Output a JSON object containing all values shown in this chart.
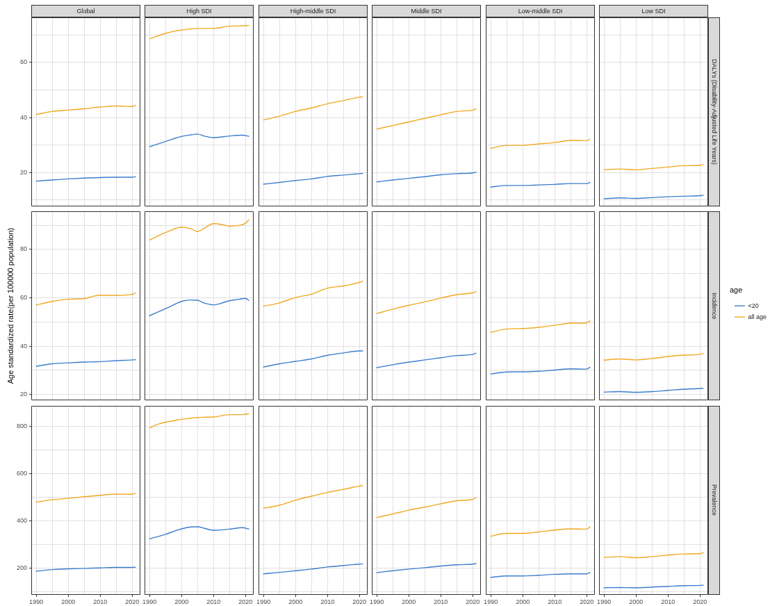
{
  "chart_data": [
    {
      "type": "line",
      "title": "Global",
      "tick_labels": "y",
      "x": [
        1990,
        1995,
        2000,
        2005,
        2010,
        2015,
        2020,
        2021
      ],
      "series": [
        {
          "color": "#3a7dce",
          "values": [
            16.9,
            17.3,
            17.7,
            18.0,
            18.2,
            18.3,
            18.3,
            18.5
          ]
        },
        {
          "color": "#f0a820",
          "values": [
            41.1,
            42.2,
            42.7,
            43.2,
            43.8,
            44.2,
            44.0,
            44.5
          ]
        }
      ],
      "xlim": [
        1988.45,
        2022.55
      ],
      "xticks": [
        1990,
        {
          "value": 1995,
          "label": null
        },
        2000,
        {
          "value": 2005,
          "label": null
        },
        2010,
        {
          "value": 2015,
          "label": null
        },
        2020
      ],
      "ylim": [
        7.7,
        76.4
      ],
      "yticks": [
        {
          "value": 10,
          "label": null
        },
        20,
        {
          "value": 30,
          "label": null
        },
        40,
        {
          "value": 50,
          "label": null
        },
        60,
        {
          "value": 70,
          "label": null
        }
      ],
      "grid": true
    },
    {
      "type": "line",
      "title": "High SDI",
      "tick_labels": false,
      "x": [
        1990,
        1995,
        2000,
        2003,
        2005,
        2007,
        2010,
        2015,
        2019,
        2021
      ],
      "series": [
        {
          "color": "#3a7dce",
          "values": [
            29.4,
            31.3,
            33.1,
            33.7,
            34.0,
            33.3,
            32.7,
            33.3,
            33.6,
            33.2
          ]
        },
        {
          "color": "#f0a820",
          "values": [
            68.6,
            70.6,
            71.8,
            72.2,
            72.4,
            72.4,
            72.4,
            73.2,
            73.3,
            73.5
          ]
        }
      ],
      "xlim": [
        1988.45,
        2022.55
      ],
      "xticks": [
        1990,
        {
          "value": 1995,
          "label": null
        },
        2000,
        {
          "value": 2005,
          "label": null
        },
        2010,
        {
          "value": 2015,
          "label": null
        },
        2020
      ],
      "ylim": [
        7.7,
        76.4
      ],
      "yticks": [
        {
          "value": 10,
          "label": null
        },
        20,
        {
          "value": 30,
          "label": null
        },
        40,
        {
          "value": 50,
          "label": null
        },
        60,
        {
          "value": 70,
          "label": null
        }
      ],
      "grid": true
    },
    {
      "type": "line",
      "title": "High-middle SDI",
      "tick_labels": false,
      "x": [
        1990,
        1995,
        2000,
        2005,
        2010,
        2015,
        2020,
        2021
      ],
      "series": [
        {
          "color": "#3a7dce",
          "values": [
            15.8,
            16.4,
            17.1,
            17.7,
            18.6,
            19.1,
            19.6,
            19.7
          ]
        },
        {
          "color": "#f0a820",
          "values": [
            39.1,
            40.5,
            42.2,
            43.5,
            45.0,
            46.2,
            47.4,
            47.5
          ]
        }
      ],
      "xlim": [
        1988.45,
        2022.55
      ],
      "xticks": [
        1990,
        {
          "value": 1995,
          "label": null
        },
        2000,
        {
          "value": 2005,
          "label": null
        },
        2010,
        {
          "value": 2015,
          "label": null
        },
        2020
      ],
      "ylim": [
        7.7,
        76.4
      ],
      "yticks": [
        {
          "value": 10,
          "label": null
        },
        20,
        {
          "value": 30,
          "label": null
        },
        40,
        {
          "value": 50,
          "label": null
        },
        60,
        {
          "value": 70,
          "label": null
        }
      ],
      "grid": true
    },
    {
      "type": "line",
      "title": "Middle SDI",
      "tick_labels": false,
      "x": [
        1990,
        1995,
        2000,
        2005,
        2010,
        2015,
        2020,
        2021
      ],
      "series": [
        {
          "color": "#3a7dce",
          "values": [
            16.6,
            17.3,
            17.9,
            18.5,
            19.2,
            19.6,
            19.9,
            20.1
          ]
        },
        {
          "color": "#f0a820",
          "values": [
            35.8,
            37.1,
            38.4,
            39.7,
            41.0,
            42.2,
            42.7,
            43.1
          ]
        }
      ],
      "xlim": [
        1988.45,
        2022.55
      ],
      "xticks": [
        1990,
        {
          "value": 1995,
          "label": null
        },
        2000,
        {
          "value": 2005,
          "label": null
        },
        2010,
        {
          "value": 2015,
          "label": null
        },
        2020
      ],
      "ylim": [
        7.7,
        76.4
      ],
      "yticks": [
        {
          "value": 10,
          "label": null
        },
        20,
        {
          "value": 30,
          "label": null
        },
        40,
        {
          "value": 50,
          "label": null
        },
        60,
        {
          "value": 70,
          "label": null
        }
      ],
      "grid": true
    },
    {
      "type": "line",
      "title": "Low-middle SDI",
      "tick_labels": false,
      "x": [
        1990,
        1995,
        2000,
        2005,
        2010,
        2015,
        2020,
        2021
      ],
      "series": [
        {
          "color": "#3a7dce",
          "values": [
            14.7,
            15.3,
            15.3,
            15.5,
            15.7,
            16.0,
            16.0,
            16.4
          ]
        },
        {
          "color": "#f0a820",
          "values": [
            28.8,
            29.9,
            29.9,
            30.4,
            30.9,
            31.7,
            31.6,
            32.2
          ]
        }
      ],
      "xlim": [
        1988.45,
        2022.55
      ],
      "xticks": [
        1990,
        {
          "value": 1995,
          "label": null
        },
        2000,
        {
          "value": 2005,
          "label": null
        },
        2010,
        {
          "value": 2015,
          "label": null
        },
        2020
      ],
      "ylim": [
        7.7,
        76.4
      ],
      "yticks": [
        {
          "value": 10,
          "label": null
        },
        20,
        {
          "value": 30,
          "label": null
        },
        40,
        {
          "value": 50,
          "label": null
        },
        60,
        {
          "value": 70,
          "label": null
        }
      ],
      "grid": true
    },
    {
      "type": "line",
      "title": "Low SDI",
      "y2label": "DALYs (Disability-Adjusted Life Years)",
      "tick_labels": false,
      "x": [
        1990,
        1995,
        2000,
        2005,
        2010,
        2015,
        2020,
        2021
      ],
      "series": [
        {
          "color": "#3a7dce",
          "values": [
            10.5,
            10.8,
            10.6,
            10.9,
            11.2,
            11.4,
            11.6,
            11.7
          ]
        },
        {
          "color": "#f0a820",
          "values": [
            21.0,
            21.3,
            21.0,
            21.5,
            22.0,
            22.5,
            22.6,
            23.0
          ]
        }
      ],
      "xlim": [
        1988.45,
        2022.55
      ],
      "xticks": [
        1990,
        {
          "value": 1995,
          "label": null
        },
        2000,
        {
          "value": 2005,
          "label": null
        },
        2010,
        {
          "value": 2015,
          "label": null
        },
        2020
      ],
      "ylim": [
        7.7,
        76.4
      ],
      "yticks": [
        {
          "value": 10,
          "label": null
        },
        20,
        {
          "value": 30,
          "label": null
        },
        40,
        {
          "value": 50,
          "label": null
        },
        60,
        {
          "value": 70,
          "label": null
        }
      ],
      "grid": true
    },
    {
      "type": "line",
      "ylabel": "Age standardized rate(per 100000 population)",
      "tick_labels": "y",
      "x": [
        1990,
        1995,
        2000,
        2005,
        2008,
        2010,
        2015,
        2020,
        2021
      ],
      "series": [
        {
          "color": "#3a7dce",
          "values": [
            31.7,
            32.7,
            33.1,
            33.4,
            33.5,
            33.6,
            34.0,
            34.3,
            34.4
          ]
        },
        {
          "color": "#f0a820",
          "values": [
            57.0,
            58.5,
            59.4,
            59.7,
            60.7,
            61.0,
            61.0,
            61.4,
            62.0
          ]
        }
      ],
      "xlim": [
        1988.45,
        2022.55
      ],
      "xticks": [
        1990,
        {
          "value": 1995,
          "label": null
        },
        2000,
        {
          "value": 2005,
          "label": null
        },
        2010,
        {
          "value": 2015,
          "label": null
        },
        2020
      ],
      "ylim": [
        17.6,
        95.8
      ],
      "yticks": [
        20,
        {
          "value": 30,
          "label": null
        },
        40,
        {
          "value": 50,
          "label": null
        },
        60,
        {
          "value": 70,
          "label": null
        },
        80,
        {
          "value": 90,
          "label": null
        }
      ],
      "grid": true
    },
    {
      "type": "line",
      "tick_labels": false,
      "x": [
        1990,
        1995,
        2000,
        2003,
        2005,
        2007,
        2010,
        2013,
        2015,
        2018,
        2020,
        2021
      ],
      "series": [
        {
          "color": "#3a7dce",
          "values": [
            52.6,
            55.5,
            58.5,
            59.1,
            59.0,
            57.9,
            57.1,
            58.0,
            58.8,
            59.4,
            59.8,
            58.9
          ]
        },
        {
          "color": "#f0a820",
          "values": [
            83.9,
            87.0,
            89.2,
            88.5,
            87.4,
            88.7,
            90.7,
            90.2,
            89.6,
            90.0,
            90.8,
            92.2
          ]
        }
      ],
      "xlim": [
        1988.45,
        2022.55
      ],
      "xticks": [
        1990,
        {
          "value": 1995,
          "label": null
        },
        2000,
        {
          "value": 2005,
          "label": null
        },
        2010,
        {
          "value": 2015,
          "label": null
        },
        2020
      ],
      "ylim": [
        17.6,
        95.8
      ],
      "yticks": [
        20,
        {
          "value": 30,
          "label": null
        },
        40,
        {
          "value": 50,
          "label": null
        },
        60,
        {
          "value": 70,
          "label": null
        },
        80,
        {
          "value": 90,
          "label": null
        }
      ],
      "grid": true
    },
    {
      "type": "line",
      "tick_labels": false,
      "x": [
        1990,
        1995,
        2000,
        2005,
        2010,
        2015,
        2020,
        2021
      ],
      "series": [
        {
          "color": "#3a7dce",
          "values": [
            31.4,
            32.7,
            33.7,
            34.7,
            36.2,
            37.2,
            38.0,
            38.0
          ]
        },
        {
          "color": "#f0a820",
          "values": [
            56.5,
            57.9,
            60.1,
            61.5,
            64.0,
            64.9,
            66.4,
            66.9
          ]
        }
      ],
      "xlim": [
        1988.45,
        2022.55
      ],
      "xticks": [
        1990,
        {
          "value": 1995,
          "label": null
        },
        2000,
        {
          "value": 2005,
          "label": null
        },
        2010,
        {
          "value": 2015,
          "label": null
        },
        2020
      ],
      "ylim": [
        17.6,
        95.8
      ],
      "yticks": [
        20,
        {
          "value": 30,
          "label": null
        },
        40,
        {
          "value": 50,
          "label": null
        },
        60,
        {
          "value": 70,
          "label": null
        },
        80,
        {
          "value": 90,
          "label": null
        }
      ],
      "grid": true
    },
    {
      "type": "line",
      "tick_labels": false,
      "x": [
        1990,
        1995,
        2000,
        2005,
        2010,
        2015,
        2020,
        2021
      ],
      "series": [
        {
          "color": "#3a7dce",
          "values": [
            31.1,
            32.3,
            33.4,
            34.3,
            35.2,
            36.1,
            36.6,
            37.1
          ]
        },
        {
          "color": "#f0a820",
          "values": [
            53.5,
            55.3,
            56.9,
            58.3,
            59.9,
            61.3,
            62.1,
            62.6
          ]
        }
      ],
      "xlim": [
        1988.45,
        2022.55
      ],
      "xticks": [
        1990,
        {
          "value": 1995,
          "label": null
        },
        2000,
        {
          "value": 2005,
          "label": null
        },
        2010,
        {
          "value": 2015,
          "label": null
        },
        2020
      ],
      "ylim": [
        17.6,
        95.8
      ],
      "yticks": [
        20,
        {
          "value": 30,
          "label": null
        },
        40,
        {
          "value": 50,
          "label": null
        },
        60,
        {
          "value": 70,
          "label": null
        },
        80,
        {
          "value": 90,
          "label": null
        }
      ],
      "grid": true
    },
    {
      "type": "line",
      "tick_labels": false,
      "x": [
        1990,
        1995,
        2000,
        2005,
        2010,
        2015,
        2020,
        2021
      ],
      "series": [
        {
          "color": "#3a7dce",
          "values": [
            28.5,
            29.3,
            29.4,
            29.6,
            30.1,
            30.6,
            30.5,
            31.3
          ]
        },
        {
          "color": "#f0a820",
          "values": [
            45.7,
            47.1,
            47.3,
            47.8,
            48.6,
            49.5,
            49.6,
            50.5
          ]
        }
      ],
      "xlim": [
        1988.45,
        2022.55
      ],
      "xticks": [
        1990,
        {
          "value": 1995,
          "label": null
        },
        2000,
        {
          "value": 2005,
          "label": null
        },
        2010,
        {
          "value": 2015,
          "label": null
        },
        2020
      ],
      "ylim": [
        17.6,
        95.8
      ],
      "yticks": [
        20,
        {
          "value": 30,
          "label": null
        },
        40,
        {
          "value": 50,
          "label": null
        },
        60,
        {
          "value": 70,
          "label": null
        },
        80,
        {
          "value": 90,
          "label": null
        }
      ],
      "grid": true
    },
    {
      "type": "line",
      "y2label": "Incidence",
      "legend": "right",
      "legend_title": "age",
      "tick_labels": false,
      "x": [
        1990,
        1995,
        2000,
        2005,
        2010,
        2015,
        2020,
        2021
      ],
      "series": [
        {
          "name": "<20",
          "color": "#3a7dce",
          "values": [
            21.0,
            21.2,
            20.9,
            21.2,
            21.7,
            22.2,
            22.5,
            22.6
          ]
        },
        {
          "name": "all age",
          "color": "#f0a820",
          "values": [
            34.2,
            34.7,
            34.3,
            34.9,
            35.7,
            36.3,
            36.6,
            37.0
          ]
        }
      ],
      "xlim": [
        1988.45,
        2022.55
      ],
      "xticks": [
        1990,
        {
          "value": 1995,
          "label": null
        },
        2000,
        {
          "value": 2005,
          "label": null
        },
        2010,
        {
          "value": 2015,
          "label": null
        },
        2020
      ],
      "ylim": [
        17.6,
        95.8
      ],
      "yticks": [
        20,
        {
          "value": 30,
          "label": null
        },
        40,
        {
          "value": 50,
          "label": null
        },
        60,
        {
          "value": 70,
          "label": null
        },
        80,
        {
          "value": 90,
          "label": null
        }
      ],
      "grid": true
    },
    {
      "type": "line",
      "x": [
        1990,
        1995,
        2000,
        2005,
        2010,
        2015,
        2020,
        2021
      ],
      "series": [
        {
          "color": "#3a7dce",
          "values": [
            187,
            194,
            197,
            199,
            201,
            203,
            203,
            204
          ]
        },
        {
          "color": "#f0a820",
          "values": [
            479,
            489,
            495,
            502,
            508,
            513,
            512,
            517
          ]
        }
      ],
      "xlim": [
        1988.45,
        2022.55
      ],
      "xticks": [
        1990,
        {
          "value": 1995,
          "label": null
        },
        2000,
        {
          "value": 2005,
          "label": null
        },
        2010,
        {
          "value": 2015,
          "label": null
        },
        2020
      ],
      "ylim": [
        87,
        886
      ],
      "yticks": [
        {
          "value": 100,
          "label": null
        },
        200,
        {
          "value": 300,
          "label": null
        },
        400,
        {
          "value": 500,
          "label": null
        },
        600,
        {
          "value": 700,
          "label": null
        },
        800
      ],
      "grid": true
    },
    {
      "type": "line",
      "tick_labels": "x",
      "x": [
        1990,
        1993,
        1995,
        2000,
        2003,
        2005,
        2007,
        2010,
        2015,
        2019,
        2021
      ],
      "series": [
        {
          "color": "#3a7dce",
          "values": [
            324,
            335,
            343,
            366,
            374,
            375,
            369,
            360,
            365,
            371,
            366
          ]
        },
        {
          "color": "#f0a820",
          "values": [
            793,
            810,
            817,
            829,
            834,
            837,
            838,
            839,
            849,
            849,
            853
          ]
        }
      ],
      "xlim": [
        1988.45,
        2022.55
      ],
      "xticks": [
        1990,
        {
          "value": 1995,
          "label": null
        },
        2000,
        {
          "value": 2005,
          "label": null
        },
        2010,
        {
          "value": 2015,
          "label": null
        },
        2020
      ],
      "ylim": [
        87,
        886
      ],
      "yticks": [
        {
          "value": 100,
          "label": null
        },
        200,
        {
          "value": 300,
          "label": null
        },
        400,
        {
          "value": 500,
          "label": null
        },
        600,
        {
          "value": 700,
          "label": null
        },
        800
      ],
      "grid": true
    },
    {
      "type": "line",
      "tick_labels": "x",
      "x": [
        1990,
        1995,
        2000,
        2005,
        2010,
        2015,
        2020,
        2021
      ],
      "series": [
        {
          "color": "#3a7dce",
          "values": [
            176,
            182,
            189,
            196,
            205,
            211,
            217,
            218
          ]
        },
        {
          "color": "#f0a820",
          "values": [
            453,
            466,
            487,
            504,
            520,
            533,
            547,
            549
          ]
        }
      ],
      "xlim": [
        1988.45,
        2022.55
      ],
      "xticks": [
        1990,
        {
          "value": 1995,
          "label": null
        },
        2000,
        {
          "value": 2005,
          "label": null
        },
        2010,
        {
          "value": 2015,
          "label": null
        },
        2020
      ],
      "ylim": [
        87,
        886
      ],
      "yticks": [
        {
          "value": 100,
          "label": null
        },
        200,
        {
          "value": 300,
          "label": null
        },
        400,
        {
          "value": 500,
          "label": null
        },
        600,
        {
          "value": 700,
          "label": null
        },
        800
      ],
      "grid": true
    },
    {
      "type": "line",
      "tick_labels": "x",
      "x": [
        1990,
        1995,
        2000,
        2005,
        2010,
        2015,
        2020,
        2021
      ],
      "series": [
        {
          "color": "#3a7dce",
          "values": [
            181,
            189,
            196,
            202,
            209,
            214,
            217,
            219
          ]
        },
        {
          "color": "#f0a820",
          "values": [
            414,
            429,
            445,
            458,
            472,
            485,
            491,
            498
          ]
        }
      ],
      "xlim": [
        1988.45,
        2022.55
      ],
      "xticks": [
        1990,
        {
          "value": 1995,
          "label": null
        },
        2000,
        {
          "value": 2005,
          "label": null
        },
        2010,
        {
          "value": 2015,
          "label": null
        },
        2020
      ],
      "ylim": [
        87,
        886
      ],
      "yticks": [
        {
          "value": 100,
          "label": null
        },
        200,
        {
          "value": 300,
          "label": null
        },
        400,
        {
          "value": 500,
          "label": null
        },
        600,
        {
          "value": 700,
          "label": null
        },
        800
      ],
      "grid": true
    },
    {
      "type": "line",
      "tick_labels": "x",
      "x": [
        1990,
        1995,
        2000,
        2005,
        2010,
        2015,
        2020,
        2021
      ],
      "series": [
        {
          "color": "#3a7dce",
          "values": [
            161,
            167,
            167,
            170,
            174,
            176,
            176,
            181
          ]
        },
        {
          "color": "#f0a820",
          "values": [
            335,
            347,
            347,
            353,
            361,
            366,
            365,
            374
          ]
        }
      ],
      "xlim": [
        1988.45,
        2022.55
      ],
      "xticks": [
        1990,
        {
          "value": 1995,
          "label": null
        },
        2000,
        {
          "value": 2005,
          "label": null
        },
        2010,
        {
          "value": 2015,
          "label": null
        },
        2020
      ],
      "ylim": [
        87,
        886
      ],
      "yticks": [
        {
          "value": 100,
          "label": null
        },
        200,
        {
          "value": 300,
          "label": null
        },
        400,
        {
          "value": 500,
          "label": null
        },
        600,
        {
          "value": 700,
          "label": null
        },
        800
      ],
      "grid": true
    },
    {
      "type": "line",
      "y2label": "Prevalence",
      "tick_labels": "x",
      "x": [
        1990,
        1995,
        2000,
        2005,
        2010,
        2015,
        2020,
        2021
      ],
      "series": [
        {
          "color": "#3a7dce",
          "values": [
            117,
            118,
            117,
            120,
            123,
            126,
            127,
            128
          ]
        },
        {
          "color": "#f0a820",
          "values": [
            245,
            249,
            244,
            249,
            255,
            260,
            261,
            266
          ]
        }
      ],
      "xlim": [
        1988.45,
        2022.55
      ],
      "xticks": [
        1990,
        {
          "value": 1995,
          "label": null
        },
        2000,
        {
          "value": 2005,
          "label": null
        },
        2010,
        {
          "value": 2015,
          "label": null
        },
        2020
      ],
      "ylim": [
        87,
        886
      ],
      "yticks": [
        {
          "value": 100,
          "label": null
        },
        200,
        {
          "value": 300,
          "label": null
        },
        400,
        {
          "value": 500,
          "label": null
        },
        600,
        {
          "value": 700,
          "label": null
        },
        800
      ],
      "grid": true
    }
  ]
}
